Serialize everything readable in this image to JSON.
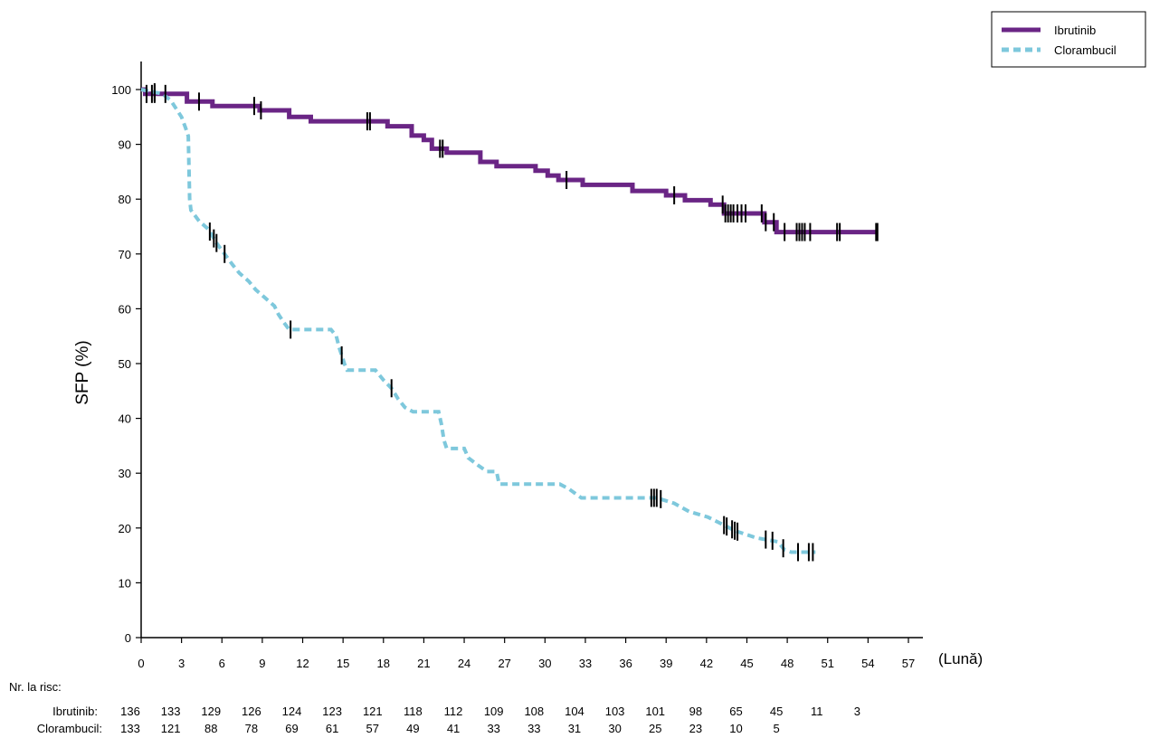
{
  "chart_data": {
    "type": "line",
    "ylabel": "SFP (%)",
    "xlabel": "(Lună)",
    "xlim": [
      0,
      57
    ],
    "ylim": [
      0,
      100
    ],
    "xticks": [
      0,
      3,
      6,
      9,
      12,
      15,
      18,
      21,
      24,
      27,
      30,
      33,
      36,
      39,
      42,
      45,
      48,
      51,
      54,
      57
    ],
    "yticks": [
      0,
      10,
      20,
      30,
      40,
      50,
      60,
      70,
      80,
      90,
      100
    ],
    "grid": false,
    "legend_position": "top-right",
    "series": [
      {
        "name": "Ibrutinib",
        "color": "#6a2585",
        "style": "solid",
        "points": [
          [
            0,
            100
          ],
          [
            0.3,
            100
          ],
          [
            0.3,
            99.2
          ],
          [
            3.4,
            99.2
          ],
          [
            3.4,
            97.8
          ],
          [
            5.3,
            97.8
          ],
          [
            5.3,
            97
          ],
          [
            8.8,
            97
          ],
          [
            8.8,
            96.2
          ],
          [
            11,
            96.2
          ],
          [
            11,
            95
          ],
          [
            12.6,
            95
          ],
          [
            12.6,
            94.2
          ],
          [
            18.3,
            94.2
          ],
          [
            18.3,
            93.3
          ],
          [
            20.1,
            93.3
          ],
          [
            20.1,
            91.6
          ],
          [
            21,
            91.6
          ],
          [
            21,
            90.8
          ],
          [
            21.6,
            90.8
          ],
          [
            21.6,
            89.2
          ],
          [
            22.7,
            89.2
          ],
          [
            22.7,
            88.5
          ],
          [
            25.2,
            88.5
          ],
          [
            25.2,
            86.8
          ],
          [
            26.4,
            86.8
          ],
          [
            26.4,
            86
          ],
          [
            29.3,
            86
          ],
          [
            29.3,
            85.2
          ],
          [
            30.2,
            85.2
          ],
          [
            30.2,
            84.3
          ],
          [
            31,
            84.3
          ],
          [
            31,
            83.5
          ],
          [
            32.8,
            83.5
          ],
          [
            32.8,
            82.6
          ],
          [
            36.5,
            82.6
          ],
          [
            36.5,
            81.5
          ],
          [
            39,
            81.5
          ],
          [
            39,
            80.7
          ],
          [
            40.4,
            80.7
          ],
          [
            40.4,
            79.8
          ],
          [
            42.3,
            79.8
          ],
          [
            42.3,
            79
          ],
          [
            43.3,
            79
          ],
          [
            43.3,
            77.4
          ],
          [
            46.3,
            77.4
          ],
          [
            46.3,
            75.8
          ],
          [
            47.2,
            75.8
          ],
          [
            47.2,
            74
          ],
          [
            54.7,
            74
          ]
        ],
        "censor_x": [
          0.4,
          0.8,
          1.0,
          1.8,
          4.3,
          8.4,
          8.9,
          16.8,
          17.0,
          22.2,
          22.4,
          31.6,
          39.6,
          43.2,
          43.4,
          43.6,
          43.8,
          44.0,
          44.3,
          44.6,
          44.9,
          46.1,
          46.4,
          47.0,
          47.8,
          48.7,
          48.9,
          49.1,
          49.3,
          49.7,
          51.7,
          51.9,
          54.6,
          54.7
        ]
      },
      {
        "name": "Clorambucil",
        "color": "#7ec8dc",
        "style": "dashed",
        "points": [
          [
            0,
            100
          ],
          [
            1.6,
            99.2
          ],
          [
            2.2,
            98
          ],
          [
            2.6,
            96.5
          ],
          [
            3,
            95
          ],
          [
            3.3,
            93
          ],
          [
            3.5,
            91.5
          ],
          [
            3.6,
            80
          ],
          [
            3.7,
            78
          ],
          [
            4.3,
            76
          ],
          [
            5,
            74.5
          ],
          [
            5.6,
            72
          ],
          [
            6.2,
            70
          ],
          [
            6.8,
            68
          ],
          [
            7.3,
            66.5
          ],
          [
            8,
            65
          ],
          [
            8.5,
            63.5
          ],
          [
            9.2,
            62
          ],
          [
            9.9,
            60.5
          ],
          [
            10.2,
            59
          ],
          [
            10.6,
            57.5
          ],
          [
            11,
            56.2
          ],
          [
            14.1,
            56.2
          ],
          [
            14.5,
            55
          ],
          [
            14.7,
            53
          ],
          [
            14.9,
            51.5
          ],
          [
            15.1,
            50
          ],
          [
            15.3,
            48.8
          ],
          [
            17.4,
            48.8
          ],
          [
            18,
            47
          ],
          [
            18.6,
            45.5
          ],
          [
            19.1,
            43.5
          ],
          [
            19.6,
            42
          ],
          [
            20.2,
            41.2
          ],
          [
            22.1,
            41.2
          ],
          [
            22.3,
            39
          ],
          [
            22.5,
            36
          ],
          [
            22.7,
            34.5
          ],
          [
            24,
            34.5
          ],
          [
            24.3,
            32.8
          ],
          [
            25,
            31.5
          ],
          [
            25.7,
            30.3
          ],
          [
            26.4,
            30.3
          ],
          [
            26.6,
            28
          ],
          [
            31.1,
            28
          ],
          [
            31.8,
            27.1
          ],
          [
            32.7,
            25.5
          ],
          [
            38.3,
            25.5
          ],
          [
            39.6,
            24.5
          ],
          [
            40.7,
            23
          ],
          [
            42.1,
            22
          ],
          [
            43.4,
            20.4
          ],
          [
            44.1,
            19.5
          ],
          [
            45.7,
            18.2
          ],
          [
            47.3,
            17.5
          ],
          [
            47.8,
            16
          ],
          [
            48.3,
            15.6
          ],
          [
            50.1,
            15.6
          ]
        ],
        "censor_x": [
          1.0,
          5.1,
          5.4,
          5.6,
          6.2,
          11.1,
          14.9,
          18.6,
          37.9,
          38.1,
          38.3,
          38.6,
          43.3,
          43.5,
          43.9,
          44.1,
          44.3,
          46.4,
          46.9,
          47.7,
          48.8,
          49.6,
          49.9
        ]
      }
    ],
    "risk_table": {
      "title": "Nr. la risc:",
      "time_points": [
        0,
        3,
        6,
        9,
        12,
        15,
        18,
        21,
        24,
        27,
        30,
        33,
        36,
        39,
        42,
        45,
        48,
        51,
        54
      ],
      "rows": [
        {
          "label": "Ibrutinib:",
          "values": [
            "136",
            "133",
            "129",
            "126",
            "124",
            "123",
            "121",
            "118",
            "112",
            "109",
            "108",
            "104",
            "103",
            "101",
            "98",
            "65",
            "45",
            "11",
            "3"
          ]
        },
        {
          "label": "Clorambucil:",
          "values": [
            "133",
            "121",
            "88",
            "78",
            "69",
            "61",
            "57",
            "49",
            "41",
            "33",
            "33",
            "31",
            "30",
            "25",
            "23",
            "10",
            "5",
            "",
            ""
          ]
        }
      ]
    }
  }
}
